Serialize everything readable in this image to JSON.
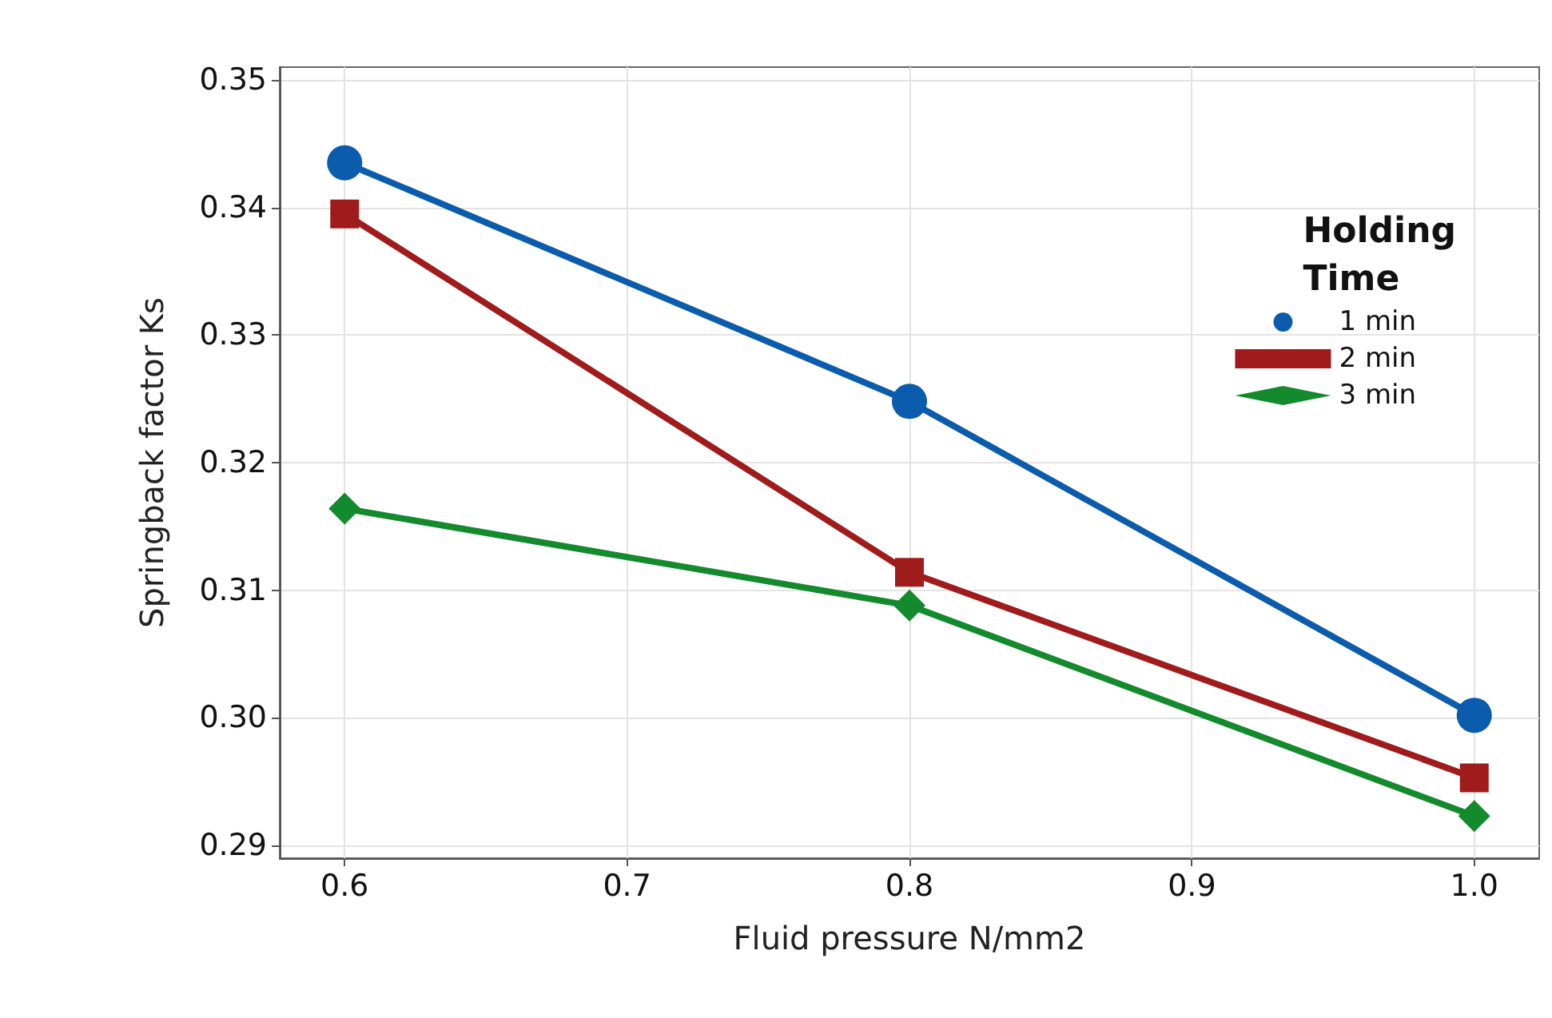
{
  "chart_data": {
    "type": "line",
    "xlabel": "Fluid pressure N/mm2",
    "ylabel": "Springback factor Ks",
    "legend_title": "Holding\nTime",
    "x": [
      0.6,
      0.8,
      1.0
    ],
    "series": [
      {
        "name": "1 min",
        "color": "#0b5cad",
        "marker": "circle",
        "values": [
          0.3435,
          0.3248,
          0.3002
        ]
      },
      {
        "name": "2 min",
        "color": "#a01b1b",
        "marker": "square",
        "values": [
          0.3395,
          0.3114,
          0.2953
        ]
      },
      {
        "name": "3 min",
        "color": "#138a2c",
        "marker": "diamond",
        "values": [
          0.3164,
          0.3088,
          0.2923
        ]
      }
    ],
    "xlim": [
      0.577,
      1.023
    ],
    "xticks": [
      {
        "value": 0.6,
        "label": "0.6"
      },
      {
        "value": 0.7,
        "label": "0.7"
      },
      {
        "value": 0.8,
        "label": "0.8"
      },
      {
        "value": 0.9,
        "label": "0.9"
      },
      {
        "value": 1.0,
        "label": "1.0"
      }
    ],
    "ylim": [
      0.289,
      0.351
    ],
    "yticks": [
      {
        "value": 0.29,
        "label": "0.29"
      },
      {
        "value": 0.3,
        "label": "0.30"
      },
      {
        "value": 0.31,
        "label": "0.31"
      },
      {
        "value": 0.32,
        "label": "0.32"
      },
      {
        "value": 0.33,
        "label": "0.33"
      },
      {
        "value": 0.34,
        "label": "0.34"
      },
      {
        "value": 0.35,
        "label": "0.35"
      }
    ],
    "grid": true,
    "legend": "top right",
    "line_style": "solid"
  }
}
